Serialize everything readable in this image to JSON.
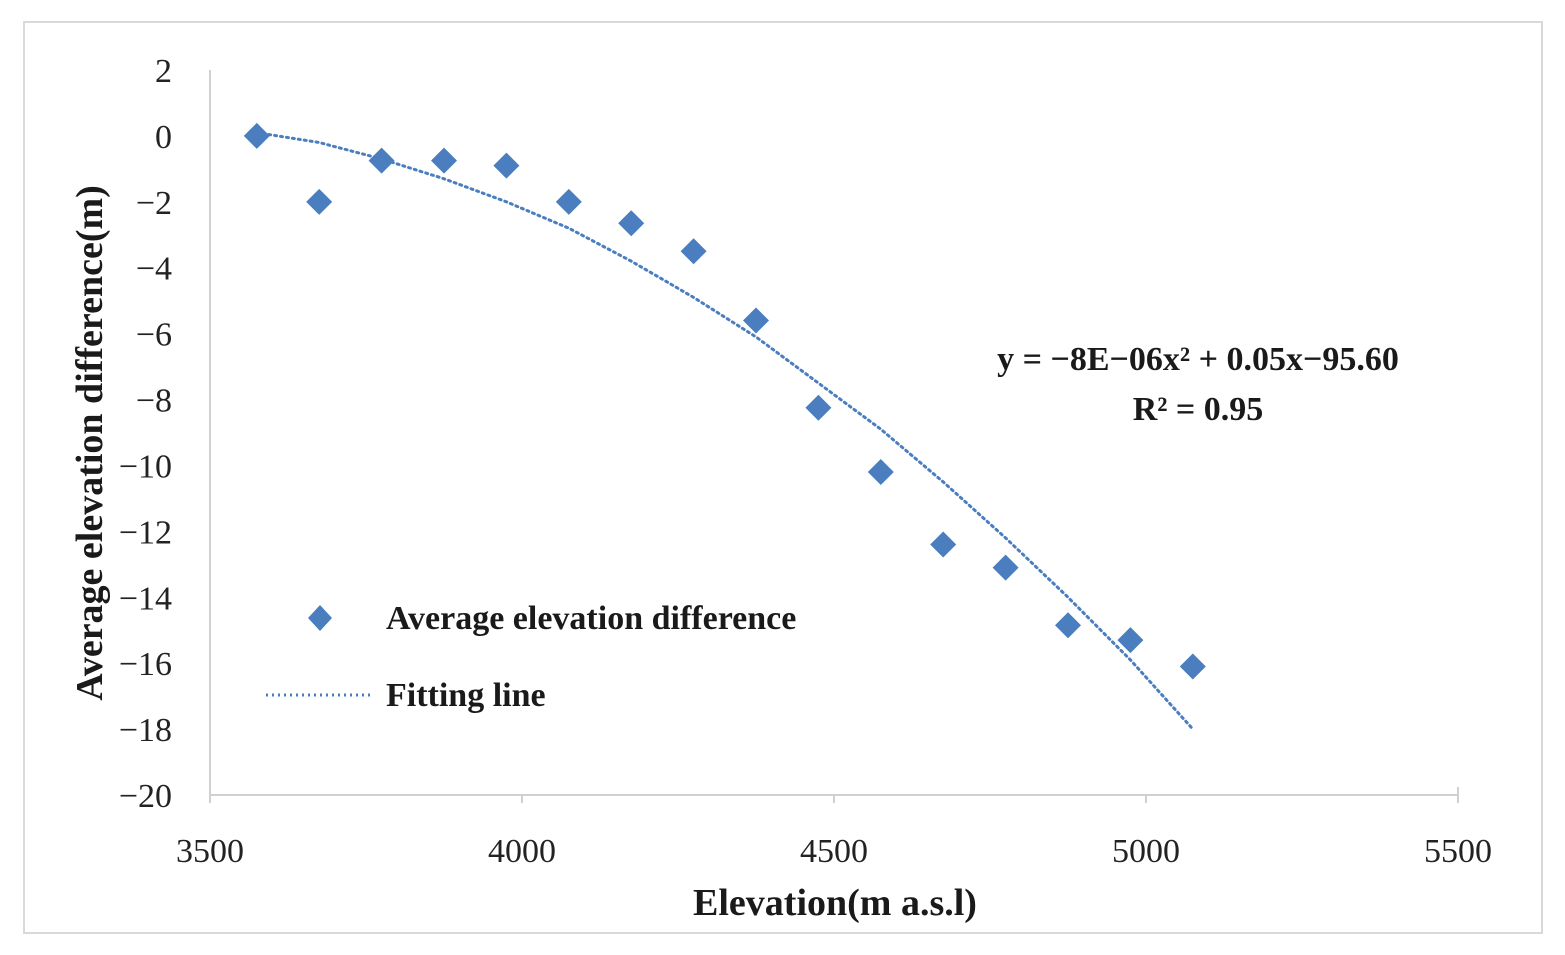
{
  "chart_data": {
    "type": "scatter",
    "title": "",
    "xlabel": "Elevation(m a.s.l)",
    "ylabel": "Average elevation difference(m)",
    "xlim": [
      3500,
      5500
    ],
    "ylim": [
      -20,
      2
    ],
    "xticks": [
      3500,
      4000,
      4500,
      5000,
      5500
    ],
    "yticks": [
      2,
      0,
      -2,
      -4,
      -6,
      -8,
      -10,
      -12,
      -14,
      -16,
      -18,
      -20
    ],
    "xtick_labels": [
      "3500",
      "4000",
      "4500",
      "5000",
      "5500"
    ],
    "ytick_labels": [
      "2",
      "0",
      "−2",
      "−4",
      "−6",
      "−8",
      "−10",
      "−12",
      "−14",
      "−16",
      "−18",
      "−20"
    ],
    "grid": false,
    "legend_position": "bottom-left",
    "series": [
      {
        "name": "Average elevation difference",
        "kind": "scatter",
        "marker": "diamond",
        "color": "#4a7ebf",
        "x": [
          3575,
          3675,
          3775,
          3875,
          3975,
          4075,
          4175,
          4275,
          4375,
          4475,
          4575,
          4675,
          4775,
          4875,
          4975,
          5075
        ],
        "y": [
          0,
          -2,
          -0.75,
          -0.75,
          -0.9,
          -2,
          -2.65,
          -3.5,
          -5.6,
          -8.25,
          -10.2,
          -12.4,
          -13.1,
          -14.85,
          -15.3,
          -16.1
        ]
      },
      {
        "name": "Fitting line",
        "kind": "line",
        "style": "dotted",
        "color": "#4a7ebf",
        "x": [
          3575,
          3675,
          3775,
          3875,
          3975,
          4075,
          4175,
          4275,
          4375,
          4475,
          4575,
          4675,
          4775,
          4875,
          4975,
          5075
        ],
        "y": [
          0.1,
          -0.2,
          -0.7,
          -1.3,
          -2.0,
          -2.8,
          -3.8,
          -4.9,
          -6.1,
          -7.5,
          -8.9,
          -10.5,
          -12.2,
          -14.0,
          -15.9,
          -18.0
        ]
      }
    ],
    "annotation": {
      "line1": "y = −8E−06x² + 0.05x−95.60",
      "line2": "R² = 0.95"
    }
  }
}
